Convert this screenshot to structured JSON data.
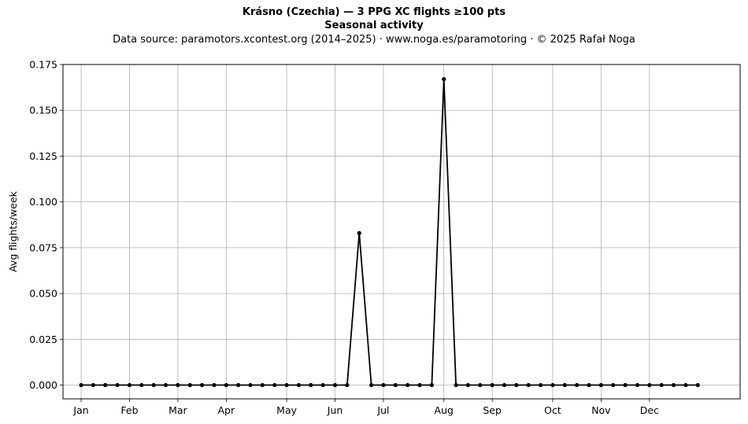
{
  "chart_data": {
    "type": "line",
    "title": "Krásno (Czechia)  —  3 PPG XC flights ≥100 pts",
    "subtitle": "Seasonal activity",
    "source": "Data source: paramotors.xcontest.org (2014–2025)  ·  www.noga.es/paramotoring  ·  © 2025 Rafał Noga",
    "xlabel": "",
    "ylabel": "Avg flights/week",
    "ylim": [
      -0.0075,
      0.175
    ],
    "xlim": [
      -1.5,
      54.5
    ],
    "grid": true,
    "y_ticks": [
      0.0,
      0.025,
      0.05,
      0.075,
      0.1,
      0.125,
      0.15,
      0.175
    ],
    "y_tick_labels": [
      "0.000",
      "0.025",
      "0.050",
      "0.075",
      "0.100",
      "0.125",
      "0.150",
      "0.175"
    ],
    "x_ticks": [
      {
        "label": "Jan",
        "week": 0
      },
      {
        "label": "Feb",
        "week": 4
      },
      {
        "label": "Mar",
        "week": 8
      },
      {
        "label": "Apr",
        "week": 12
      },
      {
        "label": "May",
        "week": 17
      },
      {
        "label": "Jun",
        "week": 21
      },
      {
        "label": "Jul",
        "week": 25
      },
      {
        "label": "Aug",
        "week": 30
      },
      {
        "label": "Sep",
        "week": 34
      },
      {
        "label": "Oct",
        "week": 39
      },
      {
        "label": "Nov",
        "week": 43
      },
      {
        "label": "Dec",
        "week": 47
      }
    ],
    "series": [
      {
        "color": "#000000",
        "x": [
          0,
          1,
          2,
          3,
          4,
          5,
          6,
          7,
          8,
          9,
          10,
          11,
          12,
          13,
          14,
          15,
          16,
          17,
          18,
          19,
          20,
          21,
          22,
          23,
          24,
          25,
          26,
          27,
          28,
          29,
          30,
          31,
          32,
          33,
          34,
          35,
          36,
          37,
          38,
          39,
          40,
          41,
          42,
          43,
          44,
          45,
          46,
          47,
          48,
          49,
          50,
          51
        ],
        "values": [
          0,
          0,
          0,
          0,
          0,
          0,
          0,
          0,
          0,
          0,
          0,
          0,
          0,
          0,
          0,
          0,
          0,
          0,
          0,
          0,
          0,
          0,
          0,
          0.083,
          0,
          0,
          0,
          0,
          0,
          0,
          0.167,
          0,
          0,
          0,
          0,
          0,
          0,
          0,
          0,
          0,
          0,
          0,
          0,
          0,
          0,
          0,
          0,
          0,
          0,
          0,
          0,
          0
        ]
      }
    ]
  }
}
